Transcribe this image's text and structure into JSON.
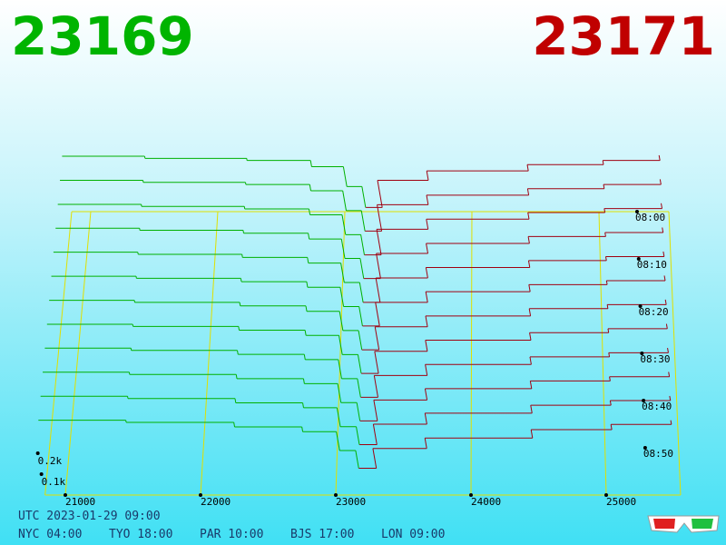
{
  "header": {
    "bid": 23169,
    "ask": 23171
  },
  "chart_data": {
    "type": "depth3d",
    "xlim": [
      20850,
      25550
    ],
    "xticks": [
      21000,
      22000,
      23000,
      24000,
      25000
    ],
    "tlim": [
      0,
      60
    ],
    "tticks": [
      {
        "value": 0,
        "label": "08:00"
      },
      {
        "value": 10,
        "label": "08:10"
      },
      {
        "value": 20,
        "label": "08:20"
      },
      {
        "value": 30,
        "label": "08:30"
      },
      {
        "value": 40,
        "label": "08:40"
      },
      {
        "value": 50,
        "label": "08:50"
      }
    ],
    "zticks": [
      {
        "value": 100,
        "label": "0.1k"
      },
      {
        "value": 200,
        "label": "0.2k"
      }
    ],
    "bid_color": "#00b000",
    "ask_color": "#a00010",
    "grid_color": "#e0e000",
    "bid_prices": [
      20850,
      21500,
      22300,
      22800,
      23050,
      23169
    ],
    "ask_prices": [
      23171,
      23300,
      23700,
      24500,
      25100,
      25550
    ],
    "slices": [
      {
        "time": 0,
        "bid": [
          265,
          255,
          245,
          215,
          120,
          20
        ],
        "ask": [
          20,
          150,
          195,
          225,
          245,
          270
        ]
      },
      {
        "time": 5,
        "bid": [
          263,
          253,
          243,
          213,
          118,
          20
        ],
        "ask": [
          20,
          146,
          192,
          223,
          243,
          268
        ]
      },
      {
        "time": 10,
        "bid": [
          261,
          251,
          239,
          211,
          116,
          19
        ],
        "ask": [
          19,
          142,
          190,
          222,
          241,
          266
        ]
      },
      {
        "time": 15,
        "bid": [
          260,
          250,
          236,
          208,
          115,
          19
        ],
        "ask": [
          19,
          139,
          187,
          220,
          239,
          263
        ]
      },
      {
        "time": 20,
        "bid": [
          258,
          248,
          233,
          206,
          113,
          18
        ],
        "ask": [
          18,
          135,
          185,
          218,
          237,
          261
        ]
      },
      {
        "time": 25,
        "bid": [
          256,
          246,
          230,
          203,
          111,
          18
        ],
        "ask": [
          18,
          131,
          182,
          216,
          235,
          259
        ]
      },
      {
        "time": 30,
        "bid": [
          254,
          244,
          227,
          201,
          109,
          17
        ],
        "ask": [
          17,
          127,
          179,
          214,
          233,
          257
        ]
      },
      {
        "time": 35,
        "bid": [
          252,
          242,
          224,
          199,
          107,
          17
        ],
        "ask": [
          17,
          123,
          176,
          212,
          231,
          254
        ]
      },
      {
        "time": 40,
        "bid": [
          251,
          240,
          221,
          196,
          105,
          16
        ],
        "ask": [
          16,
          120,
          173,
          209,
          229,
          252
        ]
      },
      {
        "time": 45,
        "bid": [
          249,
          238,
          218,
          194,
          103,
          16
        ],
        "ask": [
          16,
          116,
          170,
          207,
          227,
          250
        ]
      },
      {
        "time": 50,
        "bid": [
          247,
          236,
          215,
          192,
          101,
          15
        ],
        "ask": [
          15,
          113,
          166,
          204,
          226,
          248
        ]
      },
      {
        "time": 55,
        "bid": [
          245,
          235,
          213,
          190,
          100,
          15
        ],
        "ask": [
          15,
          110,
          160,
          200,
          225,
          245
        ]
      }
    ]
  },
  "footer": {
    "utc": "UTC 2023-01-29 09:00",
    "zones": [
      "NYC 04:00",
      "TYO 18:00",
      "PAR 10:00",
      "BJS 17:00",
      "LON 09:00"
    ]
  }
}
